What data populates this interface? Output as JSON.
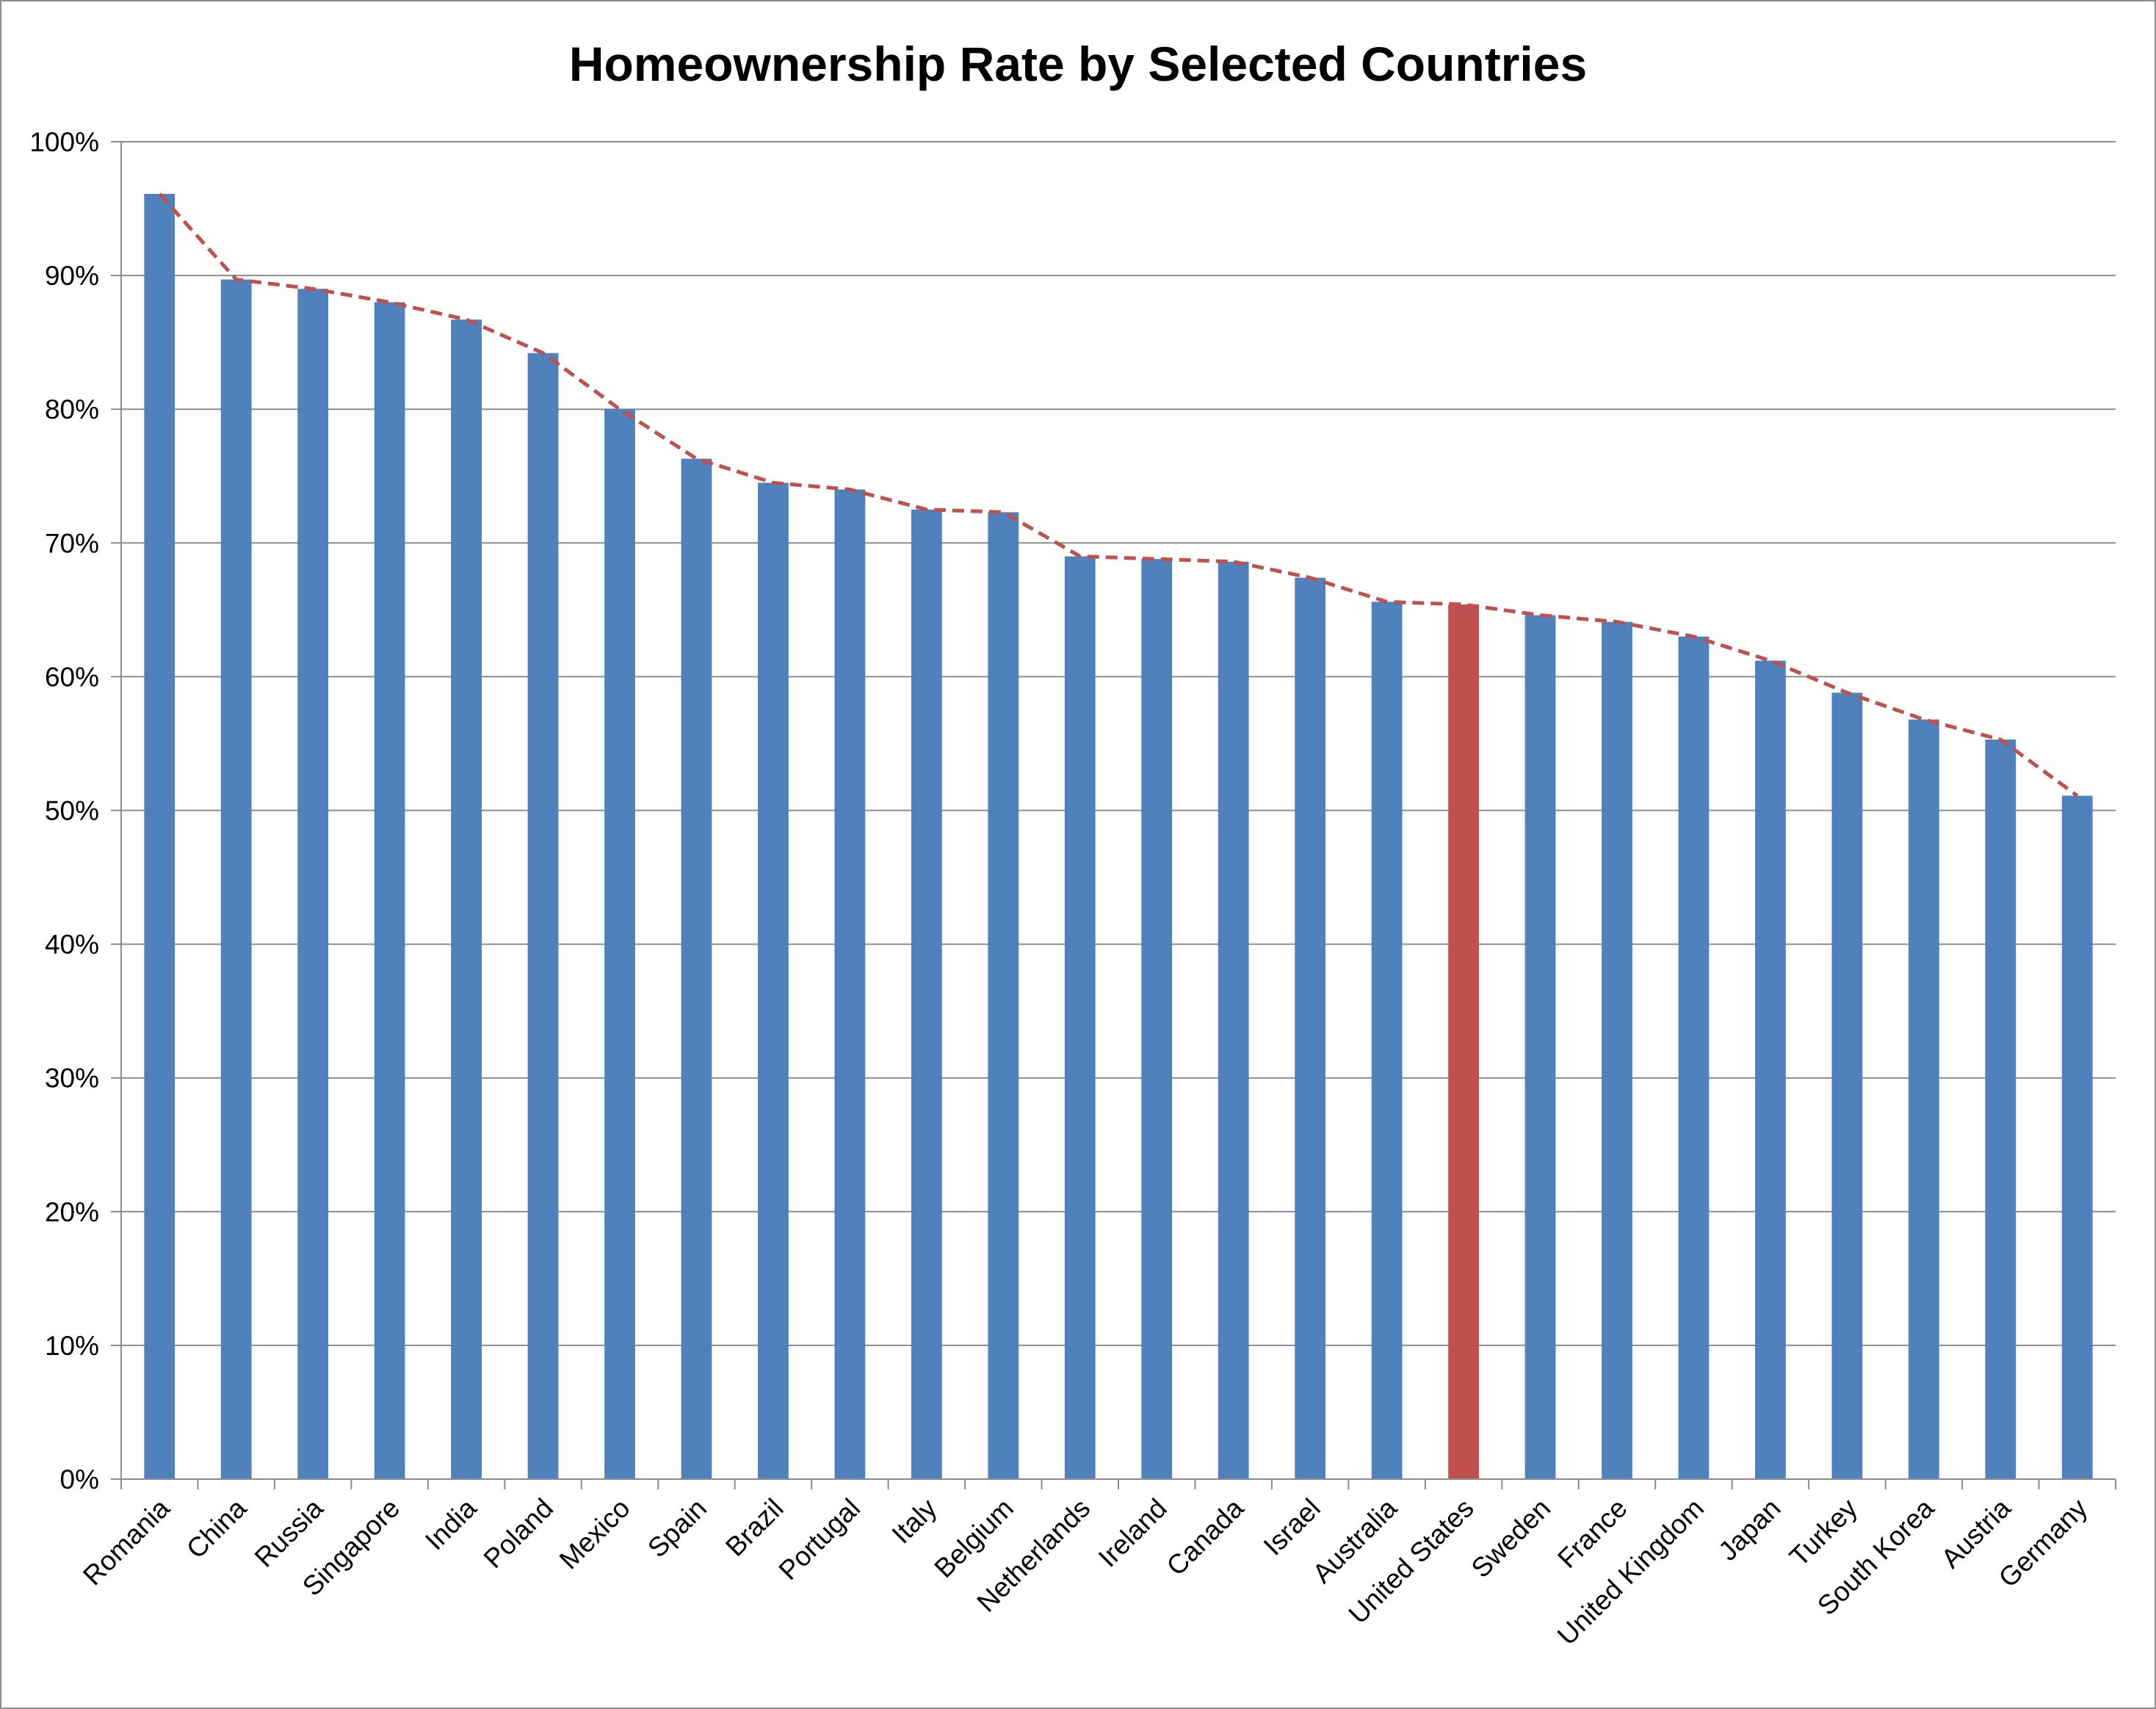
{
  "chart_data": {
    "type": "bar",
    "title": "Homeownership Rate by Selected Countries",
    "xlabel": "",
    "ylabel": "",
    "ylim": [
      0,
      100
    ],
    "y_ticks": [
      "0%",
      "10%",
      "20%",
      "30%",
      "40%",
      "50%",
      "60%",
      "70%",
      "80%",
      "90%",
      "100%"
    ],
    "grid": true,
    "legend": "none",
    "categories": [
      "Romania",
      "China",
      "Russia",
      "Singapore",
      "India",
      "Poland",
      "Mexico",
      "Spain",
      "Brazil",
      "Portugal",
      "Italy",
      "Belgium",
      "Netherlands",
      "Ireland",
      "Canada",
      "Israel",
      "Australia",
      "United States",
      "Sweden",
      "France",
      "United Kingdom",
      "Japan",
      "Turkey",
      "South Korea",
      "Austria",
      "Germany"
    ],
    "values": [
      96.1,
      89.7,
      89.0,
      88.0,
      86.7,
      84.2,
      80.0,
      76.3,
      74.5,
      74.0,
      72.5,
      72.3,
      69.0,
      68.8,
      68.6,
      67.4,
      65.6,
      65.4,
      64.6,
      64.1,
      63.0,
      61.2,
      58.8,
      56.8,
      55.3,
      51.1
    ],
    "highlight_category": "United States",
    "colors": {
      "bar": "#4f81bd",
      "highlight": "#c0504d",
      "trend_line": "#c0504d",
      "grid": "#8c8c8c",
      "axis": "#8c8c8c"
    },
    "trend_line": "dashed"
  }
}
